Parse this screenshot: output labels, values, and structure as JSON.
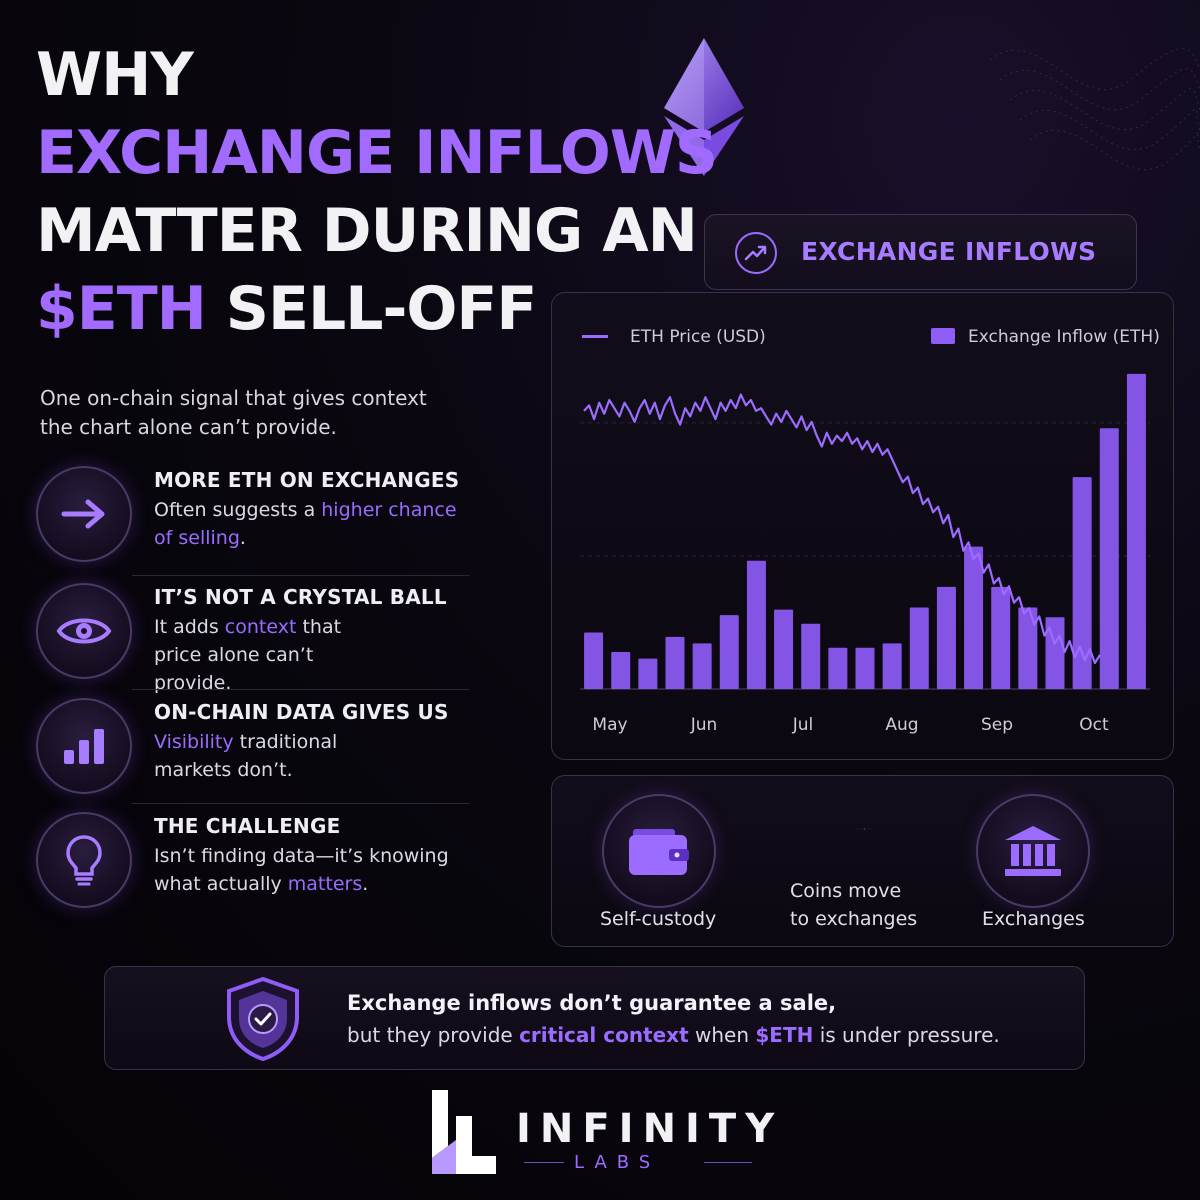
{
  "title": {
    "line1": "WHY",
    "line2": "EXCHANGE INFLOWS",
    "line3": "MATTER DURING AN",
    "line4_highlight": "$ETH",
    "line4_rest": " SELL-OFF"
  },
  "subtitle": "One on-chain signal that gives context the chart alone can’t provide.",
  "features": [
    {
      "icon": "arrow-right-icon",
      "title": "MORE ETH ON EXCHANGES",
      "body_pre": "Often suggests a ",
      "body_hl": "higher chance of selling",
      "body_post": "."
    },
    {
      "icon": "eye-icon",
      "title": "IT’S NOT A CRYSTAL BALL",
      "body_pre": "It adds ",
      "body_hl": "context",
      "body_post": " that price alone can’t provide."
    },
    {
      "icon": "bar-chart-icon",
      "title": "ON-CHAIN DATA GIVES US",
      "body_pre": "",
      "body_hl": "Visibility",
      "body_post": " traditional markets don’t."
    },
    {
      "icon": "lightbulb-icon",
      "title": "THE CHALLENGE",
      "body_pre": "Isn’t finding data—it’s knowing what actually ",
      "body_hl": "matters",
      "body_post": "."
    }
  ],
  "tab": {
    "label": "EXCHANGE INFLOWS",
    "icon": "trend-up-icon"
  },
  "chart_data": {
    "type": "bar",
    "title": "",
    "legend": {
      "placement": "top",
      "line_series": "ETH Price (USD)",
      "bar_series": "Exchange Inflow (ETH)"
    },
    "x_ticks": [
      "May",
      "Jun",
      "Jul",
      "Aug",
      "Sep",
      "Oct"
    ],
    "grid": true,
    "series": [
      {
        "name": "Exchange Inflow (ETH)",
        "type": "bar",
        "values": [
          52,
          34,
          28,
          48,
          42,
          68,
          118,
          73,
          60,
          38,
          38,
          42,
          75,
          94,
          131,
          94,
          75,
          66,
          195,
          240,
          290
        ]
      },
      {
        "name": "ETH Price (USD)",
        "type": "line",
        "values": [
          92,
          94,
          89,
          95,
          91,
          96,
          93,
          90,
          95,
          92,
          88,
          93,
          96,
          91,
          95,
          89,
          94,
          97,
          91,
          87,
          93,
          90,
          95,
          92,
          97,
          93,
          89,
          95,
          92,
          96,
          93,
          98,
          94,
          96,
          92,
          93,
          90,
          87,
          91,
          88,
          92,
          89,
          86,
          90,
          85,
          88,
          83,
          79,
          84,
          80,
          83,
          81,
          84,
          80,
          82,
          78,
          81,
          77,
          80,
          76,
          78,
          74,
          70,
          66,
          68,
          62,
          64,
          58,
          60,
          55,
          57,
          51,
          54,
          46,
          49,
          41,
          44,
          38,
          40,
          33,
          36,
          29,
          31,
          25,
          28,
          22,
          24,
          18,
          20,
          14,
          17,
          10,
          13,
          7,
          10,
          4,
          8,
          2,
          6,
          1,
          5,
          0,
          3
        ]
      }
    ],
    "ylim_bars": [
      0,
      300
    ],
    "ylim_price": [
      0,
      100
    ]
  },
  "flow": {
    "from_label": "Self-custody",
    "middle_label_1": "Coins move",
    "middle_label_2": "to exchanges",
    "to_label": "Exchanges",
    "from_icon": "wallet-icon",
    "to_icon": "bank-icon"
  },
  "callout": {
    "icon": "shield-check-icon",
    "line1": "Exchange inflows don’t guarantee a sale,",
    "line2_pre": "but they provide ",
    "line2_hl1": "critical context",
    "line2_mid": " when ",
    "line2_hl2": "$ETH",
    "line2_post": " is under pressure."
  },
  "logo": {
    "brand": "INFINITY",
    "sub": "LABS"
  },
  "colors": {
    "accent": "#9b6cff",
    "bar": "#8e5cf7",
    "background": "#0a0710"
  }
}
